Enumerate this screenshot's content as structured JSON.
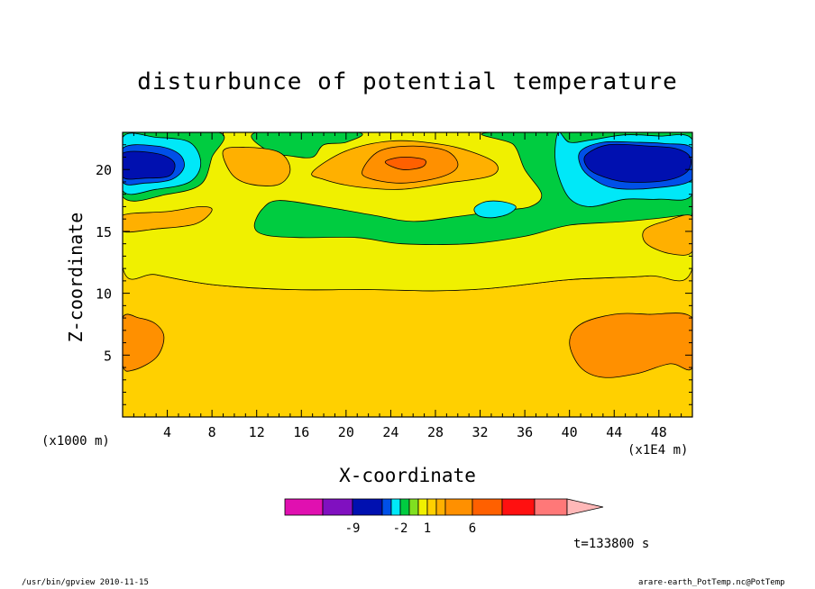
{
  "chart_data": {
    "type": "heatmap",
    "title": "disturbunce of potential temperature",
    "xlabel": "X-coordinate",
    "ylabel": "Z-coordinate",
    "x_unit_left": "(x1000 m)",
    "x_unit_right": "(x1E4 m)",
    "xlim": [
      0,
      51
    ],
    "ylim": [
      0,
      23
    ],
    "x_ticks": [
      4,
      8,
      12,
      16,
      20,
      24,
      28,
      32,
      36,
      40,
      44,
      48
    ],
    "x_tick_labels": [
      "4",
      "8",
      "12",
      "16",
      "20",
      "24",
      "28",
      "32",
      "36",
      "40",
      "44",
      "48"
    ],
    "y_ticks": [
      5,
      10,
      15,
      20
    ],
    "y_tick_labels": [
      "5",
      "10",
      "15",
      "20"
    ],
    "colorbar": {
      "labels": [
        {
          "text": "-9",
          "index": 2
        },
        {
          "text": "-2",
          "index": 5
        },
        {
          "text": "1",
          "index": 8
        },
        {
          "text": "6",
          "index": 11
        }
      ],
      "colors": [
        "#e010b0",
        "#8010c0",
        "#0010b0",
        "#0050e8",
        "#00e8f8",
        "#00cc40",
        "#80e020",
        "#f0f000",
        "#ffd000",
        "#ffb000",
        "#ff9000",
        "#ff6000",
        "#ff1010",
        "#ff7878",
        "#ffb8b8"
      ]
    },
    "regions": [
      {
        "level": "3",
        "color": "#ffd000",
        "points": [
          [
            0,
            0
          ],
          [
            51,
            0
          ],
          [
            51,
            12
          ],
          [
            47,
            11.4
          ],
          [
            40,
            11.1
          ],
          [
            33,
            10.4
          ],
          [
            28,
            10.2
          ],
          [
            22,
            10.3
          ],
          [
            15,
            10.3
          ],
          [
            8,
            10.7
          ],
          [
            3,
            11.5
          ],
          [
            0,
            12.1
          ]
        ]
      },
      {
        "level": "2",
        "color": "#f0f000",
        "points": [
          [
            0,
            12.1
          ],
          [
            3,
            11.5
          ],
          [
            8,
            10.7
          ],
          [
            15,
            10.3
          ],
          [
            22,
            10.3
          ],
          [
            28,
            10.2
          ],
          [
            33,
            10.4
          ],
          [
            40,
            11.1
          ],
          [
            47,
            11.4
          ],
          [
            51,
            12
          ],
          [
            51,
            23
          ],
          [
            0,
            23
          ]
        ]
      },
      {
        "level": "1",
        "color": "#00cc40",
        "points": [
          [
            0,
            23
          ],
          [
            0,
            17.8
          ],
          [
            4,
            18
          ],
          [
            7,
            18.8
          ],
          [
            8,
            21
          ],
          [
            8.6,
            23
          ]
        ]
      },
      {
        "level": "1",
        "color": "#00cc40",
        "points": [
          [
            12,
            23
          ],
          [
            13,
            21.5
          ],
          [
            15,
            21.1
          ],
          [
            17,
            21
          ],
          [
            18,
            22
          ],
          [
            20,
            22.2
          ],
          [
            21,
            23
          ]
        ]
      },
      {
        "level": "1",
        "color": "#00cc40",
        "points": [
          [
            33,
            23
          ],
          [
            35,
            22
          ],
          [
            36,
            20
          ],
          [
            37.5,
            18
          ],
          [
            36.5,
            17
          ],
          [
            34,
            16.7
          ],
          [
            30,
            16.2
          ],
          [
            26,
            15.8
          ],
          [
            22.5,
            16.3
          ],
          [
            18,
            17
          ],
          [
            14,
            17.5
          ],
          [
            12.5,
            16.8
          ],
          [
            11.8,
            15.4
          ],
          [
            12.8,
            14.7
          ],
          [
            16,
            14.5
          ],
          [
            21,
            14.5
          ],
          [
            25,
            14
          ],
          [
            31,
            14
          ],
          [
            36,
            14.6
          ],
          [
            40,
            15.5
          ],
          [
            45,
            15.8
          ],
          [
            50,
            16.3
          ],
          [
            51,
            16.6
          ],
          [
            51,
            23
          ]
        ]
      },
      {
        "level": "4",
        "color": "#ffb000",
        "points": [
          [
            0,
            16.3
          ],
          [
            4,
            16.6
          ],
          [
            7,
            17
          ],
          [
            8,
            16.7
          ],
          [
            6.5,
            15.6
          ],
          [
            3,
            15.2
          ],
          [
            0,
            15
          ]
        ]
      },
      {
        "level": "4",
        "color": "#ffb000",
        "points": [
          [
            9,
            21.5
          ],
          [
            11,
            21.8
          ],
          [
            14,
            21.4
          ],
          [
            15,
            20
          ],
          [
            14,
            18.8
          ],
          [
            11.5,
            18.8
          ],
          [
            9.8,
            19.6
          ]
        ]
      },
      {
        "level": "4",
        "color": "#ffb000",
        "points": [
          [
            17,
            19.8
          ],
          [
            20,
            21.5
          ],
          [
            24,
            22.3
          ],
          [
            28,
            22.1
          ],
          [
            31,
            21.5
          ],
          [
            33.4,
            20.5
          ],
          [
            33,
            19.5
          ],
          [
            29,
            18.9
          ],
          [
            25,
            18.4
          ],
          [
            21,
            18.6
          ],
          [
            18,
            19.2
          ]
        ]
      },
      {
        "level": "4",
        "color": "#ffb000",
        "points": [
          [
            46.7,
            15.1
          ],
          [
            48.5,
            15.8
          ],
          [
            51,
            16.2
          ],
          [
            51,
            13.4
          ],
          [
            49,
            13.2
          ],
          [
            46.9,
            14
          ]
        ]
      },
      {
        "level": "5",
        "color": "#ff9000",
        "points": [
          [
            21.5,
            20
          ],
          [
            23,
            21.5
          ],
          [
            26,
            21.9
          ],
          [
            29,
            21.5
          ],
          [
            30,
            20.3
          ],
          [
            28.5,
            19.4
          ],
          [
            25,
            18.9
          ],
          [
            22,
            19.3
          ]
        ]
      },
      {
        "level": "5",
        "color": "#ff9000",
        "points": [
          [
            0,
            4.2
          ],
          [
            1,
            3.8
          ],
          [
            3,
            4.8
          ],
          [
            3.7,
            6.4
          ],
          [
            3,
            7.5
          ],
          [
            1.5,
            8
          ],
          [
            0,
            8
          ]
        ]
      },
      {
        "level": "5",
        "color": "#ff9000",
        "points": [
          [
            51,
            4
          ],
          [
            49,
            4.3
          ],
          [
            46,
            3.5
          ],
          [
            43,
            3.2
          ],
          [
            41,
            4
          ],
          [
            40,
            6
          ],
          [
            41,
            7.5
          ],
          [
            44,
            8.3
          ],
          [
            47,
            8.3
          ],
          [
            51,
            8
          ]
        ]
      },
      {
        "level": "6",
        "color": "#ff6000",
        "points": [
          [
            23.5,
            20.6
          ],
          [
            25,
            21
          ],
          [
            27,
            20.8
          ],
          [
            26.8,
            20.2
          ],
          [
            25,
            20
          ]
        ]
      },
      {
        "level": "0",
        "color": "#00e8f8",
        "points": [
          [
            39,
            23
          ],
          [
            40,
            22.2
          ],
          [
            42,
            22.4
          ],
          [
            45,
            22.8
          ],
          [
            48,
            22.7
          ],
          [
            51,
            22.4
          ],
          [
            51,
            18
          ],
          [
            48,
            17.6
          ],
          [
            45,
            17.6
          ],
          [
            42,
            17
          ],
          [
            40.2,
            17.5
          ],
          [
            39.2,
            19
          ],
          [
            38.7,
            21
          ]
        ]
      },
      {
        "level": "0",
        "color": "#00e8f8",
        "points": [
          [
            31.5,
            16.9
          ],
          [
            32.5,
            17.4
          ],
          [
            34,
            17.4
          ],
          [
            35.2,
            17
          ],
          [
            34.5,
            16.4
          ],
          [
            33,
            16.1
          ],
          [
            31.8,
            16.3
          ]
        ]
      },
      {
        "level": "0",
        "color": "#00e8f8",
        "points": [
          [
            0,
            22.6
          ],
          [
            3,
            22.6
          ],
          [
            6,
            22.2
          ],
          [
            7,
            20.5
          ],
          [
            6,
            19
          ],
          [
            3,
            18.4
          ],
          [
            0,
            18.3
          ]
        ]
      },
      {
        "level": "-1",
        "color": "#0050e8",
        "points": [
          [
            41,
            21.5
          ],
          [
            43,
            22.2
          ],
          [
            46,
            22.2
          ],
          [
            48.5,
            22.1
          ],
          [
            51,
            21.7
          ],
          [
            51,
            19.2
          ],
          [
            47.5,
            18.5
          ],
          [
            44,
            18.5
          ],
          [
            42,
            19.3
          ],
          [
            41,
            20.3
          ]
        ]
      },
      {
        "level": "-1",
        "color": "#0050e8",
        "points": [
          [
            0,
            21.7
          ],
          [
            3,
            21.9
          ],
          [
            5,
            21.3
          ],
          [
            5.5,
            20.2
          ],
          [
            4.4,
            19.2
          ],
          [
            2,
            18.9
          ],
          [
            0,
            19
          ]
        ]
      },
      {
        "level": "-2",
        "color": "#0010b0",
        "points": [
          [
            0,
            21.3
          ],
          [
            3,
            21.3
          ],
          [
            4.6,
            20.6
          ],
          [
            4.2,
            19.5
          ],
          [
            2,
            19.3
          ],
          [
            0,
            19.4
          ]
        ]
      },
      {
        "level": "-2",
        "color": "#0010b0",
        "points": [
          [
            41.5,
            21.2
          ],
          [
            43.5,
            22
          ],
          [
            47,
            21.9
          ],
          [
            49.5,
            21.7
          ],
          [
            50.8,
            21
          ],
          [
            50.5,
            19.8
          ],
          [
            48.5,
            19.1
          ],
          [
            45,
            19
          ],
          [
            42.5,
            19.6
          ],
          [
            41.5,
            20.3
          ]
        ]
      }
    ]
  },
  "time_label": "t=133800 s",
  "footer_left": "/usr/bin/gpview  2010-11-15",
  "footer_right": "arare-earth_PotTemp.nc@PotTemp"
}
